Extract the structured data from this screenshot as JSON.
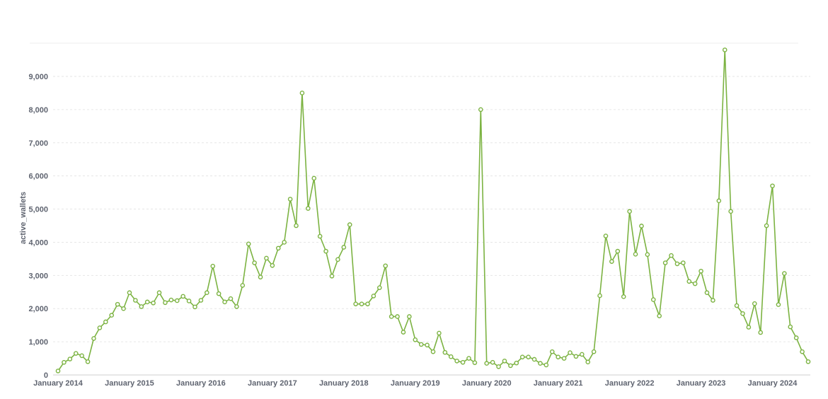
{
  "chart_data": {
    "type": "line",
    "ylabel": "active_wallets",
    "xlabel": "",
    "ylim": [
      0,
      9800
    ],
    "y_ticks": [
      0,
      1000,
      2000,
      3000,
      4000,
      5000,
      6000,
      7000,
      8000,
      9000
    ],
    "y_tick_labels": [
      "0",
      "1,000",
      "2,000",
      "3,000",
      "4,000",
      "5,000",
      "6,000",
      "7,000",
      "8,000",
      "9,000"
    ],
    "x_tick_labels": [
      "January 2014",
      "January 2015",
      "January 2016",
      "January 2017",
      "January 2018",
      "January 2019",
      "January 2020",
      "January 2021",
      "January 2022",
      "January 2023",
      "January 2024"
    ],
    "x_start": "2014-01",
    "x_end": "2024-06",
    "grid": true,
    "legend": "none",
    "colors": {
      "series": "#7cb342",
      "grid": "#e6e6e6",
      "text": "#5f6470"
    },
    "series": [
      {
        "values": [
          120,
          380,
          480,
          650,
          580,
          400,
          1100,
          1420,
          1600,
          1800,
          2130,
          2000,
          2480,
          2250,
          2060,
          2200,
          2170,
          2480,
          2180,
          2260,
          2240,
          2370,
          2230,
          2050,
          2250,
          2480,
          3280,
          2450,
          2200,
          2300,
          2060,
          2700,
          3950,
          3380,
          2950,
          3520,
          3300,
          3820,
          4000,
          5300,
          4500,
          8500,
          5020,
          5930,
          4180,
          3730,
          2980,
          3480,
          3850,
          4530,
          2140,
          2140,
          2140,
          2380,
          2630,
          3290,
          1760,
          1760,
          1290,
          1760,
          1060,
          920,
          900,
          700,
          1260,
          680,
          550,
          420,
          380,
          500,
          370,
          8000,
          350,
          380,
          250,
          420,
          280,
          360,
          540,
          540,
          470,
          350,
          300,
          700,
          540,
          500,
          670,
          560,
          620,
          390,
          700,
          2390,
          4190,
          3420,
          3730,
          2360,
          4930,
          3640,
          4490,
          3630,
          2270,
          1780,
          3380,
          3600,
          3350,
          3380,
          2820,
          2750,
          3130,
          2480,
          2250,
          5250,
          9800,
          4930,
          2090,
          1850,
          1440,
          2150,
          1280,
          4500,
          5700,
          2120,
          3060,
          1450,
          1120,
          700,
          400
        ]
      }
    ]
  }
}
